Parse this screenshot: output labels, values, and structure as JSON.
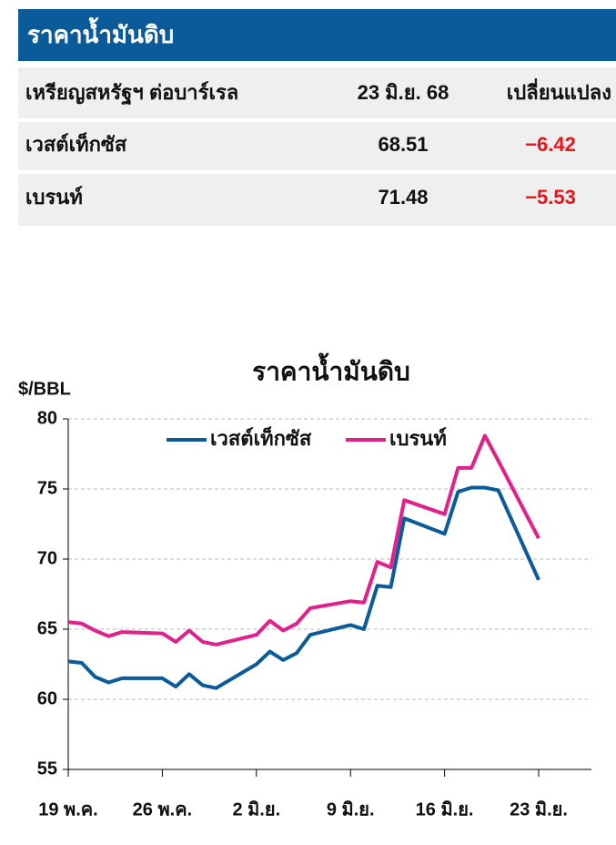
{
  "table": {
    "title": "ราคาน้ำมันดิบ",
    "header": [
      "เหรียญสหรัฐฯ ต่อบาร์เรล",
      "23 มิ.ย. 68",
      "เปลี่ยนแปลง"
    ],
    "rows": [
      [
        "เวสต์เท็กซัส",
        "68.51",
        "−6.42"
      ],
      [
        "เบรนท์",
        "71.48",
        "−5.53"
      ]
    ]
  },
  "chart_data": {
    "type": "line",
    "title": "ราคาน้ำมันดิบ",
    "y_label": "$/BBL",
    "x": [
      "19 พ.ค.",
      "20 พ.ค.",
      "21 พ.ค.",
      "22 พ.ค.",
      "23 พ.ค.",
      "26 พ.ค.",
      "27 พ.ค.",
      "28 พ.ค.",
      "29 พ.ค.",
      "30 พ.ค.",
      "2 มิ.ย.",
      "3 มิ.ย.",
      "4 มิ.ย.",
      "5 มิ.ย.",
      "6 มิ.ย.",
      "9 มิ.ย.",
      "10 มิ.ย.",
      "11 มิ.ย.",
      "12 มิ.ย.",
      "13 มิ.ย.",
      "16 มิ.ย.",
      "17 มิ.ย.",
      "18 มิ.ย.",
      "19 มิ.ย.",
      "20 มิ.ย.",
      "23 มิ.ย."
    ],
    "xticks": [
      "19 พ.ค.",
      "26 พ.ค.",
      "2 มิ.ย.",
      "9 มิ.ย.",
      "16 มิ.ย.",
      "23 มิ.ย."
    ],
    "series": [
      {
        "name": "เวสต์เท็กซัส",
        "color": "#0b5a9a",
        "values": [
          62.7,
          62.6,
          61.6,
          61.2,
          61.5,
          61.5,
          60.9,
          61.8,
          61.0,
          60.8,
          62.5,
          63.4,
          62.8,
          63.3,
          64.6,
          65.3,
          65.0,
          68.1,
          68.0,
          72.9,
          71.8,
          74.8,
          75.1,
          75.1,
          74.9,
          68.51
        ]
      },
      {
        "name": "เบรนท์",
        "color": "#e0218a",
        "values": [
          65.5,
          65.4,
          64.9,
          64.5,
          64.8,
          64.7,
          64.1,
          64.9,
          64.1,
          63.9,
          64.6,
          65.6,
          64.9,
          65.4,
          66.5,
          67.0,
          66.9,
          69.8,
          69.4,
          74.2,
          73.2,
          76.5,
          76.5,
          78.8,
          77.0,
          71.48
        ]
      }
    ],
    "ylim": [
      55,
      80
    ],
    "yticks": [
      55,
      60,
      65,
      70,
      75,
      80
    ],
    "grid": true
  }
}
